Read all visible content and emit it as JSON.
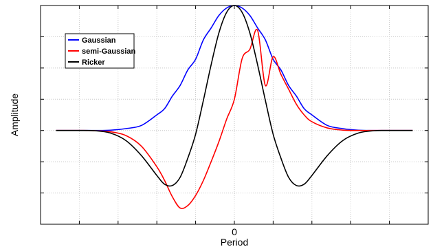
{
  "chart_data": {
    "type": "line",
    "title": "",
    "xlabel": "Period",
    "ylabel": "Amplitude",
    "xlim": [
      -2.5,
      2.5
    ],
    "ylim": [
      -1.5,
      2.0
    ],
    "grid": true,
    "grid_style": "dotted",
    "legend_position": "top-left",
    "x_ticks": [
      -2.0,
      -1.5,
      -1.0,
      -0.5,
      0.0,
      0.5,
      1.0,
      1.5,
      2.0,
      2.5
    ],
    "x_tick_labels": [
      {
        "x": 0.0,
        "label": "0"
      }
    ],
    "y_ticks": [
      -1.0,
      -0.5,
      0.0,
      0.5,
      1.0,
      1.5,
      2.0
    ],
    "x": [
      -2.3,
      -2.0,
      -1.8,
      -1.6,
      -1.4,
      -1.2,
      -1.0,
      -0.9,
      -0.8,
      -0.7,
      -0.6,
      -0.5,
      -0.4,
      -0.3,
      -0.2,
      -0.1,
      0.0,
      0.1,
      0.2,
      0.3,
      0.4,
      0.5,
      0.6,
      0.7,
      0.8,
      0.9,
      1.0,
      1.2,
      1.4,
      1.6,
      1.8,
      2.0,
      2.3
    ],
    "series": [
      {
        "name": "Gaussian",
        "color": "#0000ff",
        "values": [
          0.0,
          0.0,
          0.0,
          0.004,
          0.03,
          0.08,
          0.25,
          0.35,
          0.55,
          0.72,
          0.97,
          1.14,
          1.45,
          1.64,
          1.84,
          1.96,
          2.0,
          1.96,
          1.84,
          1.64,
          1.45,
          1.14,
          0.97,
          0.72,
          0.55,
          0.35,
          0.25,
          0.08,
          0.03,
          0.004,
          0.0,
          0.0,
          0.0
        ]
      },
      {
        "name": "semi-Gaussian",
        "color": "#ff0000",
        "values": [
          0.0,
          0.0,
          -0.003,
          -0.02,
          -0.08,
          -0.25,
          -0.58,
          -0.8,
          -1.06,
          -1.24,
          -1.2,
          -1.04,
          -0.8,
          -0.5,
          -0.18,
          0.18,
          0.5,
          1.15,
          1.3,
          1.6,
          0.72,
          1.18,
          0.9,
          0.66,
          0.42,
          0.25,
          0.14,
          0.04,
          0.006,
          0.0,
          0.0,
          0.0,
          0.0
        ]
      },
      {
        "name": "Ricker",
        "color": "#000000",
        "values": [
          0.0,
          0.0,
          -0.003,
          -0.04,
          -0.16,
          -0.4,
          -0.72,
          -0.86,
          -0.88,
          -0.75,
          -0.44,
          -0.06,
          0.48,
          1.05,
          1.56,
          1.89,
          2.0,
          1.89,
          1.56,
          1.05,
          0.48,
          -0.06,
          -0.44,
          -0.75,
          -0.88,
          -0.86,
          -0.72,
          -0.4,
          -0.16,
          -0.04,
          -0.003,
          0.0,
          0.0
        ]
      }
    ]
  }
}
